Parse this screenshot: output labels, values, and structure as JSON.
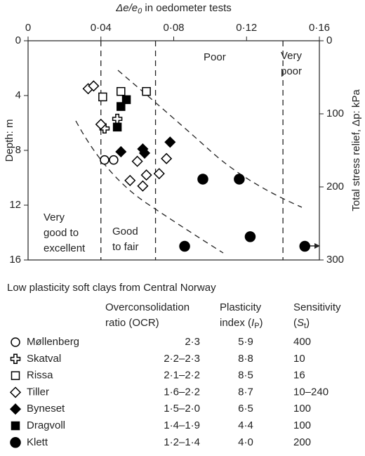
{
  "chart_data": {
    "type": "scatter",
    "xlabel": [
      "Δe/e",
      "0",
      " in oedometer tests"
    ],
    "ylabel": "Depth: m",
    "y2label": "Total stress relief, Δp: kPa",
    "x_axis_position": "top",
    "y_inverted": true,
    "xlim": [
      0,
      0.16
    ],
    "xticks": [
      0,
      {
        "value": 0.04,
        "label": "0·04"
      },
      {
        "value": 0.08,
        "label": "0·08"
      },
      {
        "value": 0.12,
        "label": "0·12"
      },
      {
        "value": 0.16,
        "label": "0·16"
      }
    ],
    "ylim": [
      0,
      16
    ],
    "yticks": [
      0,
      4,
      8,
      12,
      16
    ],
    "y2lim": [
      0,
      300
    ],
    "y2ticks": [
      0,
      100,
      200,
      300
    ],
    "boundaries": [
      0.04,
      0.07,
      0.14
    ],
    "regions": [
      [
        "Very",
        "good to",
        "excellent"
      ],
      [
        "Good",
        "to fair"
      ],
      [
        "Poor"
      ],
      [
        "Very",
        "poor"
      ]
    ],
    "series": [
      {
        "name": "Møllenberg",
        "marker": "circle-open",
        "color": "#000000",
        "x": [
          0.042,
          0.047
        ],
        "values": [
          8.7,
          8.7
        ]
      },
      {
        "name": "Skatval",
        "marker": "cross-open",
        "color": "#000000",
        "x": [
          0.042,
          0.049
        ],
        "values": [
          6.4,
          5.7
        ]
      },
      {
        "name": "Rissa",
        "marker": "square-open",
        "color": "#000000",
        "x": [
          0.041,
          0.051,
          0.065
        ],
        "values": [
          4.1,
          3.7,
          3.7
        ]
      },
      {
        "name": "Tiller",
        "marker": "diamond-open",
        "color": "#000000",
        "x": [
          0.033,
          0.036,
          0.04,
          0.06,
          0.056,
          0.063,
          0.065,
          0.072,
          0.076
        ],
        "values": [
          3.5,
          3.3,
          6.1,
          8.8,
          10.2,
          10.6,
          9.8,
          9.7,
          8.6
        ]
      },
      {
        "name": "Byneset",
        "marker": "diamond-filled",
        "color": "#000000",
        "x": [
          0.051,
          0.063,
          0.064,
          0.078
        ],
        "values": [
          8.1,
          7.9,
          8.2,
          7.4
        ]
      },
      {
        "name": "Dragvoll",
        "marker": "square-filled",
        "color": "#000000",
        "x": [
          0.054,
          0.051,
          0.049
        ],
        "values": [
          4.3,
          4.8,
          6.3
        ]
      },
      {
        "name": "Klett",
        "marker": "circle-filled",
        "color": "#000000",
        "x": [
          0.086,
          0.096,
          0.116,
          0.122,
          0.152
        ],
        "values": [
          15.0,
          10.1,
          10.1,
          14.3,
          15.0
        ]
      }
    ]
  },
  "legend_table": {
    "title": "Low plasticity soft clays from Central Norway",
    "headers": [
      [
        "Overconsolidation",
        "ratio (OCR)"
      ],
      [
        "Plasticity",
        [
          "index (",
          "I",
          "P",
          ")"
        ]
      ],
      [
        "Sensitivity",
        [
          "(",
          "S",
          "t",
          ")"
        ]
      ]
    ],
    "rows": [
      [
        "2·3",
        "5·9",
        "400"
      ],
      [
        "2·2–2·3",
        "8·8",
        "10"
      ],
      [
        "2·1–2·2",
        "8·5",
        "16"
      ],
      [
        "1·6–2·2",
        "8·7",
        "10–240"
      ],
      [
        "1·5–2·0",
        "6·5",
        "100"
      ],
      [
        "1·4–1·9",
        "4·4",
        "100"
      ],
      [
        "1·2–1·4",
        "4·0",
        "200"
      ]
    ]
  }
}
